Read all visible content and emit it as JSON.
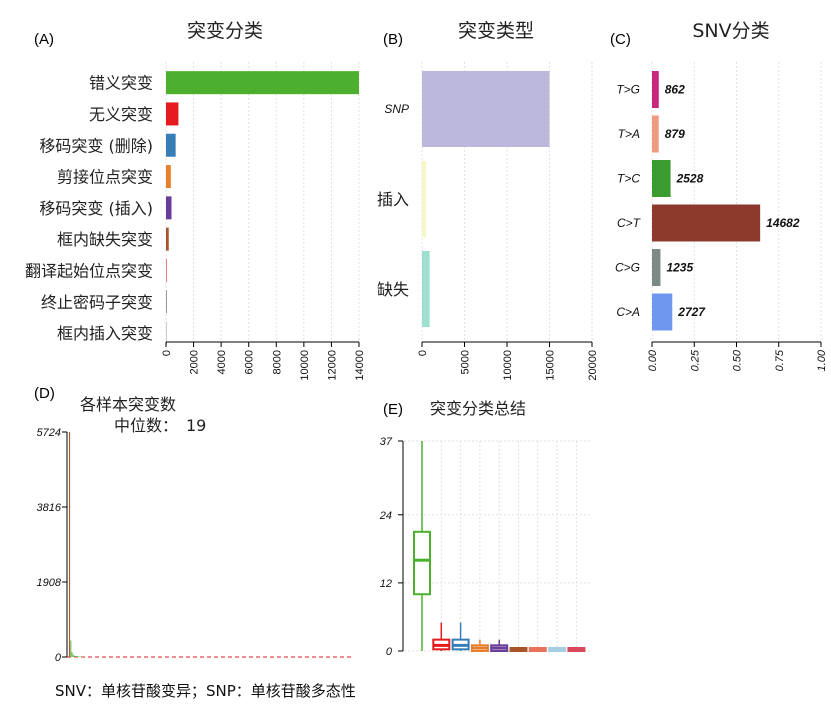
{
  "figure": {
    "footnote": "SNV：单核苷酸变异；SNP：单核苷酸多态性"
  },
  "chart_data": [
    {
      "id": "A",
      "type": "bar",
      "orientation": "horizontal",
      "panel_label": "(A)",
      "title": "突变分类",
      "categories": [
        "错义突变",
        "无义突变",
        "移码突变 (删除)",
        "剪接位点突变",
        "移码突变 (插入)",
        "框内缺失突变",
        "翻译起始位点突变",
        "终止密码子突变",
        "框内插入突变"
      ],
      "values": [
        14000,
        900,
        700,
        350,
        400,
        200,
        60,
        20,
        10
      ],
      "colors": [
        "#4daf2e",
        "#e41a1c",
        "#377eb8",
        "#e87f2c",
        "#6a3d9a",
        "#a65628",
        "#f08080",
        "#999999",
        "#cccccc"
      ],
      "xlim": [
        0,
        14000
      ],
      "xticks": [
        0,
        2000,
        4000,
        6000,
        8000,
        10000,
        12000,
        14000
      ]
    },
    {
      "id": "B",
      "type": "bar",
      "orientation": "horizontal",
      "panel_label": "(B)",
      "title": "突变类型",
      "categories": [
        "SNP",
        "插入",
        "缺失"
      ],
      "values": [
        15000,
        200,
        900
      ],
      "colors": [
        "#bcb8dc",
        "#f5f7c4",
        "#9de0cf"
      ],
      "xlim": [
        0,
        20000
      ],
      "xticks": [
        0,
        5000,
        10000,
        15000,
        20000
      ]
    },
    {
      "id": "C",
      "type": "bar",
      "orientation": "horizontal",
      "panel_label": "(C)",
      "title": "SNV分类",
      "categories": [
        "T>G",
        "T>A",
        "T>C",
        "C>T",
        "C>G",
        "C>A"
      ],
      "counts": [
        862,
        879,
        2528,
        14682,
        1235,
        2727
      ],
      "fractions": [
        0.04,
        0.04,
        0.11,
        0.64,
        0.05,
        0.12
      ],
      "colors": [
        "#c9267e",
        "#ee9c80",
        "#3a9b2e",
        "#8b3a2c",
        "#7c8984",
        "#6f97ef"
      ],
      "xlim": [
        0,
        1
      ],
      "xticks": [
        "0.00",
        "0.25",
        "0.50",
        "0.75",
        "1.00"
      ]
    },
    {
      "id": "D",
      "type": "bar",
      "panel_label": "(D)",
      "title": "各样本突变数",
      "median_label": "中位数：",
      "median": "19",
      "ylim": [
        0,
        5724
      ],
      "yticks": [
        "0",
        "1908",
        "3816",
        "5724"
      ],
      "values": [
        5724,
        420,
        130,
        60,
        35,
        25,
        20,
        18,
        15,
        12,
        10,
        8
      ],
      "colors": [
        "#4daf2e",
        "#e41a1c"
      ]
    },
    {
      "id": "E",
      "type": "box",
      "panel_label": "(E)",
      "title": "突变分类总结",
      "ylim": [
        0,
        37
      ],
      "yticks": [
        "0",
        "12",
        "24",
        "37"
      ],
      "boxes": [
        {
          "min": 0,
          "q1": 10,
          "median": 16,
          "q3": 21,
          "max": 37,
          "color": "#4daf2e"
        },
        {
          "min": 0,
          "q1": 0.3,
          "median": 1,
          "q3": 2,
          "max": 5,
          "color": "#e41a1c"
        },
        {
          "min": 0,
          "q1": 0.3,
          "median": 1,
          "q3": 2,
          "max": 5,
          "color": "#377eb8"
        },
        {
          "min": 0,
          "q1": 0,
          "median": 0.5,
          "q3": 1,
          "max": 2,
          "color": "#e87f2c"
        },
        {
          "min": 0,
          "q1": 0,
          "median": 0.5,
          "q3": 1,
          "max": 2,
          "color": "#6a3d9a"
        },
        {
          "min": 0,
          "q1": 0,
          "median": 0,
          "q3": 0.4,
          "max": 0.6,
          "color": "#a65628"
        },
        {
          "min": 0,
          "q1": 0,
          "median": 0,
          "q3": 0.4,
          "max": 0.6,
          "color": "#e8735a"
        },
        {
          "min": 0,
          "q1": 0,
          "median": 0,
          "q3": 0.4,
          "max": 0.6,
          "color": "#a6cee3"
        },
        {
          "min": 0,
          "q1": 0,
          "median": 0,
          "q3": 0.4,
          "max": 0.6,
          "color": "#d9475d"
        }
      ]
    }
  ]
}
